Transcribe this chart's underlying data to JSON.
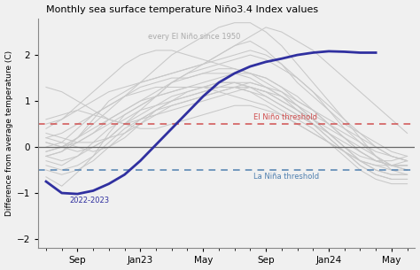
{
  "title": "Monthly sea surface temperature Niño3.4 Index values",
  "ylabel": "Difference from average temperature (C)",
  "el_nino_threshold": 0.5,
  "la_nina_threshold": -0.5,
  "el_nino_threshold_label": "El Niño threshold",
  "la_nina_threshold_label": "La Niña threshold",
  "el_nino_color": "#d05050",
  "la_nina_color": "#5080b0",
  "zero_line_color": "#666666",
  "background_lines_label": "every El Niño since 1950",
  "background_lines_color": "#c8c8c8",
  "highlight_color": "#3030a0",
  "highlight_label": "2022-2023",
  "ylim": [
    -2.2,
    2.8
  ],
  "x_tick_labels": [
    "Sep",
    "Jan23",
    "May",
    "Sep",
    "Jan24",
    "May"
  ],
  "x_tick_positions": [
    2,
    6,
    10,
    14,
    18,
    22
  ],
  "n_months": 24,
  "fig_background": "#f0f0f0",
  "plot_background": "#f0f0f0",
  "background_lines": [
    [
      -0.65,
      -0.85,
      -0.55,
      -0.2,
      0.3,
      0.7,
      0.9,
      1.1,
      1.4,
      1.6,
      1.8,
      2.0,
      2.2,
      2.3,
      2.1,
      1.8,
      1.4,
      1.1,
      0.8,
      0.5,
      0.3,
      0.1,
      -0.1,
      -0.2
    ],
    [
      -0.2,
      -0.1,
      0.2,
      0.6,
      1.0,
      1.2,
      1.4,
      1.5,
      1.6,
      1.7,
      1.8,
      2.0,
      2.2,
      2.4,
      2.6,
      2.5,
      2.3,
      2.1,
      1.8,
      1.5,
      1.2,
      0.9,
      0.6,
      0.3
    ],
    [
      0.3,
      0.2,
      0.1,
      0.1,
      0.2,
      0.3,
      0.5,
      0.7,
      0.9,
      1.0,
      1.1,
      1.2,
      1.3,
      1.4,
      1.3,
      1.2,
      1.0,
      0.8,
      0.6,
      0.4,
      0.2,
      0.0,
      -0.2,
      -0.3
    ],
    [
      0.1,
      0.0,
      -0.1,
      0.0,
      0.2,
      0.5,
      0.8,
      1.1,
      1.4,
      1.6,
      1.7,
      1.8,
      1.9,
      2.0,
      1.9,
      1.7,
      1.5,
      1.2,
      0.9,
      0.6,
      0.3,
      0.0,
      -0.2,
      -0.3
    ],
    [
      0.2,
      0.3,
      0.5,
      0.7,
      0.9,
      1.1,
      1.2,
      1.3,
      1.3,
      1.3,
      1.3,
      1.2,
      1.1,
      1.0,
      0.9,
      0.7,
      0.5,
      0.3,
      0.1,
      -0.1,
      -0.3,
      -0.4,
      -0.5,
      -0.5
    ],
    [
      0.0,
      0.1,
      0.4,
      0.7,
      0.9,
      1.1,
      1.3,
      1.4,
      1.5,
      1.5,
      1.6,
      1.6,
      1.6,
      1.5,
      1.3,
      1.1,
      0.8,
      0.6,
      0.3,
      0.0,
      -0.2,
      -0.3,
      -0.3,
      -0.2
    ],
    [
      -0.1,
      0.0,
      0.2,
      0.4,
      0.6,
      0.8,
      1.0,
      1.2,
      1.4,
      1.5,
      1.6,
      1.7,
      1.7,
      1.6,
      1.4,
      1.2,
      0.9,
      0.6,
      0.3,
      0.0,
      -0.3,
      -0.5,
      -0.6,
      -0.6
    ],
    [
      1.3,
      1.2,
      1.0,
      0.8,
      0.6,
      0.5,
      0.4,
      0.4,
      0.5,
      0.6,
      0.7,
      0.8,
      0.9,
      0.9,
      0.8,
      0.7,
      0.5,
      0.3,
      0.1,
      -0.1,
      -0.3,
      -0.4,
      -0.4,
      -0.3
    ],
    [
      -0.3,
      -0.4,
      -0.2,
      0.1,
      0.4,
      0.6,
      0.8,
      0.9,
      1.0,
      1.1,
      1.2,
      1.3,
      1.3,
      1.2,
      1.0,
      0.8,
      0.6,
      0.4,
      0.1,
      -0.2,
      -0.5,
      -0.7,
      -0.8,
      -0.8
    ],
    [
      0.5,
      0.6,
      0.8,
      1.0,
      1.2,
      1.3,
      1.4,
      1.5,
      1.6,
      1.7,
      1.8,
      1.9,
      2.0,
      2.1,
      2.0,
      1.8,
      1.5,
      1.2,
      0.8,
      0.4,
      0.1,
      -0.2,
      -0.4,
      -0.5
    ],
    [
      -0.5,
      -0.6,
      -0.5,
      -0.3,
      0.0,
      0.3,
      0.6,
      0.8,
      1.0,
      1.1,
      1.2,
      1.3,
      1.4,
      1.4,
      1.3,
      1.1,
      0.9,
      0.6,
      0.3,
      0.0,
      -0.3,
      -0.5,
      -0.6,
      -0.6
    ],
    [
      0.1,
      0.0,
      0.1,
      0.3,
      0.5,
      0.7,
      0.9,
      1.1,
      1.2,
      1.3,
      1.4,
      1.5,
      1.6,
      1.6,
      1.5,
      1.3,
      1.0,
      0.8,
      0.5,
      0.2,
      -0.1,
      -0.3,
      -0.4,
      -0.4
    ],
    [
      -0.1,
      0.0,
      0.2,
      0.5,
      0.8,
      1.1,
      1.4,
      1.7,
      2.0,
      2.2,
      2.4,
      2.6,
      2.7,
      2.7,
      2.5,
      2.2,
      1.8,
      1.4,
      1.0,
      0.6,
      0.2,
      -0.2,
      -0.5,
      -0.6
    ],
    [
      0.4,
      0.6,
      0.9,
      1.2,
      1.5,
      1.8,
      2.0,
      2.1,
      2.1,
      2.0,
      1.9,
      1.8,
      1.7,
      1.6,
      1.5,
      1.3,
      1.1,
      0.8,
      0.5,
      0.2,
      -0.1,
      -0.3,
      -0.4,
      -0.4
    ],
    [
      -0.2,
      -0.1,
      0.1,
      0.3,
      0.6,
      0.8,
      1.0,
      1.1,
      1.2,
      1.3,
      1.3,
      1.3,
      1.3,
      1.2,
      1.1,
      0.9,
      0.7,
      0.5,
      0.3,
      0.1,
      -0.1,
      -0.3,
      -0.4,
      -0.4
    ],
    [
      0.6,
      0.7,
      0.8,
      0.7,
      0.6,
      0.5,
      0.6,
      0.7,
      0.8,
      0.9,
      1.0,
      1.1,
      1.2,
      1.3,
      1.2,
      1.1,
      0.9,
      0.7,
      0.5,
      0.3,
      0.1,
      -0.1,
      -0.2,
      -0.3
    ],
    [
      0.2,
      0.1,
      0.0,
      -0.1,
      0.0,
      0.2,
      0.5,
      0.8,
      1.0,
      1.2,
      1.3,
      1.4,
      1.4,
      1.3,
      1.2,
      1.0,
      0.8,
      0.6,
      0.4,
      0.2,
      0.0,
      -0.2,
      -0.4,
      -0.5
    ],
    [
      -0.2,
      -0.3,
      -0.2,
      0.0,
      0.2,
      0.5,
      0.7,
      0.9,
      1.1,
      1.2,
      1.3,
      1.4,
      1.4,
      1.3,
      1.1,
      0.9,
      0.7,
      0.5,
      0.2,
      -0.1,
      -0.4,
      -0.6,
      -0.7,
      -0.7
    ],
    [
      -0.4,
      -0.5,
      -0.4,
      -0.2,
      0.1,
      0.4,
      0.6,
      0.8,
      0.9,
      1.0,
      1.1,
      1.2,
      1.3,
      1.3,
      1.2,
      1.0,
      0.8,
      0.5,
      0.2,
      -0.1,
      -0.4,
      -0.6,
      -0.7,
      -0.7
    ]
  ],
  "highlight_data": [
    -0.75,
    -1.0,
    -1.02,
    -0.95,
    -0.8,
    -0.6,
    -0.3,
    0.05,
    0.4,
    0.75,
    1.1,
    1.4,
    1.6,
    1.75,
    1.85,
    1.92,
    2.0,
    2.05,
    2.08,
    2.07,
    2.05,
    2.05,
    null,
    null
  ]
}
